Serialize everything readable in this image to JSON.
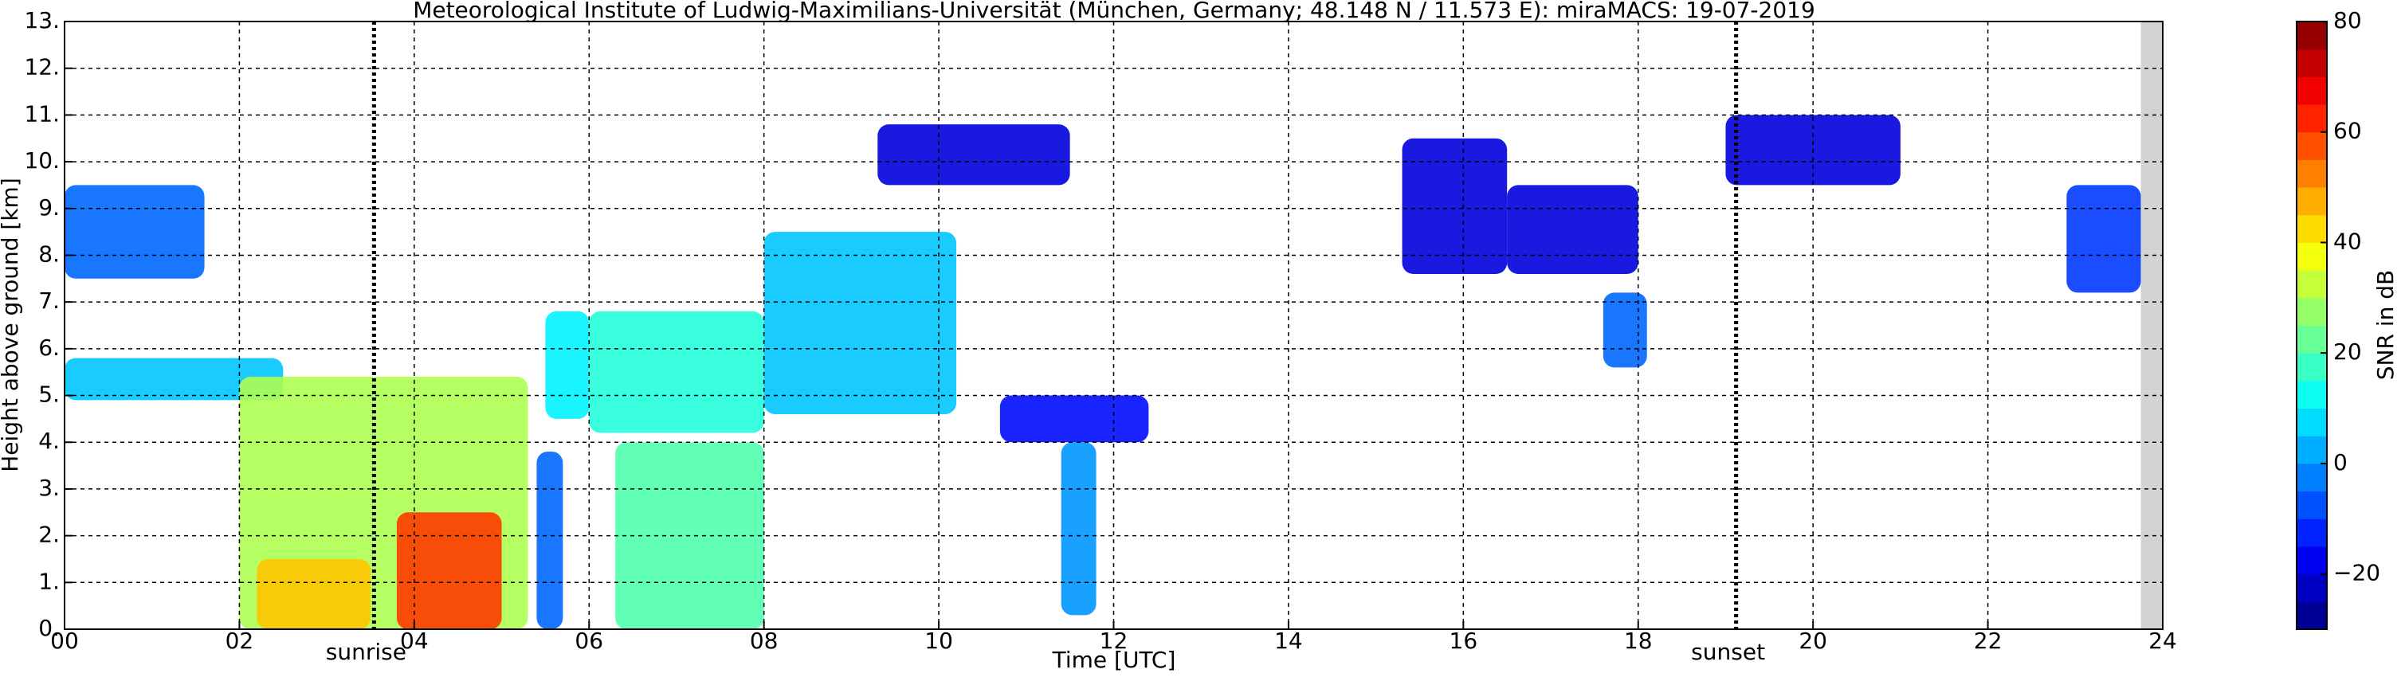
{
  "chart_data": {
    "type": "heatmap",
    "title": "Meteorological Institute of Ludwig-Maximilians-Universität (München, Germany; 48.148 N / 11.573 E):    miraMACS: 19-07-2019",
    "xlabel": "Time [UTC]",
    "ylabel": "Height above ground [km]",
    "colorbar_label": "SNR in dB",
    "xlim": [
      0,
      24
    ],
    "ylim": [
      0,
      13
    ],
    "clim": [
      -30,
      80
    ],
    "grid": true,
    "colormap": "jet",
    "xticks": [
      {
        "value": 0,
        "label": "00"
      },
      {
        "value": 2,
        "label": "02"
      },
      {
        "value": 4,
        "label": "04"
      },
      {
        "value": 6,
        "label": "06"
      },
      {
        "value": 8,
        "label": "08"
      },
      {
        "value": 10,
        "label": "10"
      },
      {
        "value": 12,
        "label": "12"
      },
      {
        "value": 14,
        "label": "14"
      },
      {
        "value": 16,
        "label": "16"
      },
      {
        "value": 18,
        "label": "18"
      },
      {
        "value": 20,
        "label": "20"
      },
      {
        "value": 22,
        "label": "22"
      },
      {
        "value": 24,
        "label": "24"
      }
    ],
    "yticks": [
      {
        "value": 0,
        "label": "0."
      },
      {
        "value": 1,
        "label": "1."
      },
      {
        "value": 2,
        "label": "2."
      },
      {
        "value": 3,
        "label": "3."
      },
      {
        "value": 4,
        "label": "4."
      },
      {
        "value": 5,
        "label": "5."
      },
      {
        "value": 6,
        "label": "6."
      },
      {
        "value": 7,
        "label": "7."
      },
      {
        "value": 8,
        "label": "8."
      },
      {
        "value": 9,
        "label": "9."
      },
      {
        "value": 10,
        "label": "10."
      },
      {
        "value": 11,
        "label": "11."
      },
      {
        "value": 12,
        "label": "12."
      },
      {
        "value": 13,
        "label": "13."
      }
    ],
    "cticks": [
      {
        "value": -20,
        "label": "−20"
      },
      0,
      20,
      40,
      60,
      80
    ],
    "events": [
      {
        "name": "sunrise",
        "time": 3.54
      },
      {
        "name": "sunset",
        "time": 19.12
      }
    ],
    "no_data_from": 23.75,
    "echoes": [
      {
        "t": [
          0,
          1.6
        ],
        "h": [
          7.5,
          9.5
        ],
        "snr": -5
      },
      {
        "t": [
          0,
          2.5
        ],
        "h": [
          4.9,
          5.8
        ],
        "snr": 5
      },
      {
        "t": [
          2.0,
          5.3
        ],
        "h": [
          0,
          5.4
        ],
        "snr": 30
      },
      {
        "t": [
          2.2,
          3.5
        ],
        "h": [
          0,
          1.5
        ],
        "snr": 45
      },
      {
        "t": [
          3.8,
          5.0
        ],
        "h": [
          0,
          2.5
        ],
        "snr": 60
      },
      {
        "t": [
          5.4,
          5.7
        ],
        "h": [
          0,
          3.8
        ],
        "snr": -5
      },
      {
        "t": [
          5.5,
          6.0
        ],
        "h": [
          4.5,
          6.8
        ],
        "snr": 10
      },
      {
        "t": [
          6.0,
          8.0
        ],
        "h": [
          4.2,
          6.8
        ],
        "snr": 15
      },
      {
        "t": [
          6.3,
          8.0
        ],
        "h": [
          0,
          4.0
        ],
        "snr": 20
      },
      {
        "t": [
          8.0,
          10.2
        ],
        "h": [
          4.6,
          8.5
        ],
        "snr": 5
      },
      {
        "t": [
          9.3,
          11.5
        ],
        "h": [
          9.5,
          10.8
        ],
        "snr": -20
      },
      {
        "t": [
          10.7,
          12.4
        ],
        "h": [
          4.0,
          5.0
        ],
        "snr": -15
      },
      {
        "t": [
          11.4,
          11.8
        ],
        "h": [
          0.3,
          4.0
        ],
        "snr": 0
      },
      {
        "t": [
          15.3,
          16.5
        ],
        "h": [
          7.6,
          10.5
        ],
        "snr": -20
      },
      {
        "t": [
          16.5,
          18.0
        ],
        "h": [
          7.6,
          9.5
        ],
        "snr": -20
      },
      {
        "t": [
          17.6,
          18.1
        ],
        "h": [
          5.6,
          7.2
        ],
        "snr": -5
      },
      {
        "t": [
          19.0,
          21.0
        ],
        "h": [
          9.5,
          11.0
        ],
        "snr": -20
      },
      {
        "t": [
          22.9,
          23.75
        ],
        "h": [
          7.2,
          9.5
        ],
        "snr": -10
      }
    ]
  }
}
